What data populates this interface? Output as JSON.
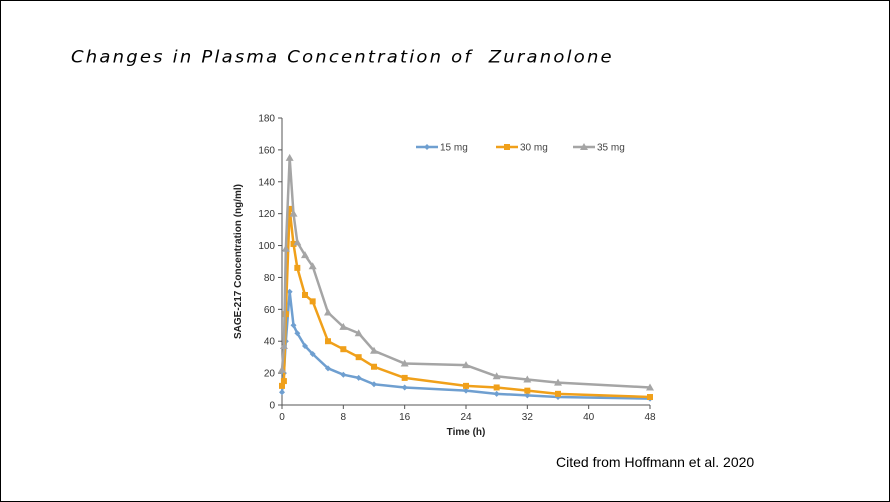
{
  "title": "Changes in Plasma Concentration of  Zuranolone",
  "citation": "Cited from Hoffmann et al. 2020",
  "chart_data": {
    "type": "line",
    "xlabel": "Time (h)",
    "ylabel": "SAGE-217 Concentration (ng/ml)",
    "xlim": [
      0,
      48
    ],
    "ylim": [
      0,
      180
    ],
    "xticks": [
      0,
      8,
      16,
      24,
      32,
      40,
      48
    ],
    "yticks": [
      0,
      20,
      40,
      60,
      80,
      100,
      120,
      140,
      160,
      180
    ],
    "grid": false,
    "legend": "top-right",
    "x": [
      0,
      0.25,
      0.5,
      1,
      1.5,
      2,
      3,
      4,
      6,
      8,
      10,
      12,
      16,
      24,
      28,
      32,
      36,
      48
    ],
    "series": [
      {
        "name": "15 mg",
        "color": "#6f9fd0",
        "marker": "diamond",
        "values": [
          8,
          20,
          40,
          71,
          50,
          45,
          37,
          32,
          23,
          19,
          17,
          13,
          11,
          9,
          7,
          6,
          5,
          4
        ]
      },
      {
        "name": "30 mg",
        "color": "#f0a01a",
        "marker": "square",
        "values": [
          12,
          15,
          57,
          123,
          101,
          86,
          69,
          65,
          40,
          35,
          30,
          24,
          17,
          12,
          11,
          9,
          7,
          5
        ]
      },
      {
        "name": "35 mg",
        "color": "#a5a5a5",
        "marker": "triangle",
        "values": [
          22,
          37,
          98,
          155,
          120,
          102,
          94,
          87,
          58,
          49,
          45,
          34,
          26,
          25,
          18,
          16,
          14,
          11
        ]
      }
    ]
  }
}
